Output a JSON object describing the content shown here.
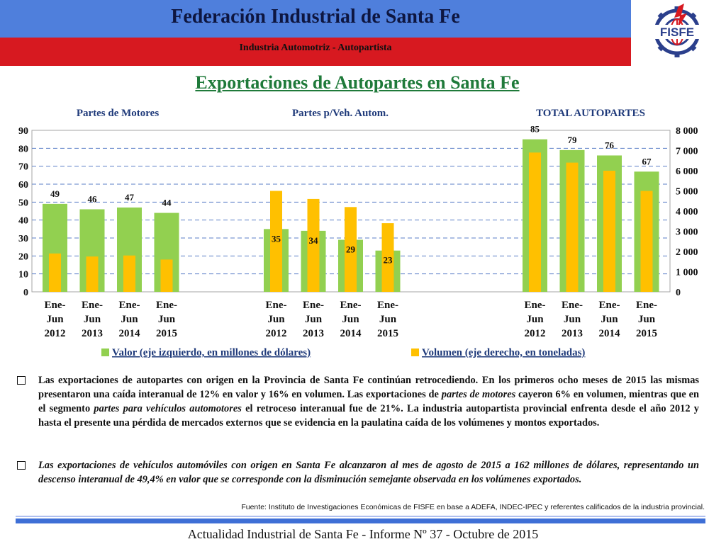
{
  "header": {
    "org_title": "Federación Industrial de Santa Fe",
    "subtitle": "Industria Automotriz - Autopartista",
    "logo_text": "FISFE"
  },
  "main_title": "Exportaciones de Autopartes en Santa Fe",
  "colors": {
    "valor": "#92d050",
    "volumen": "#ffc000",
    "title": "#1f7a3a",
    "header_blue": "#4f7fdc",
    "header_red": "#d71920"
  },
  "chart_data": {
    "type": "bar",
    "panels": [
      {
        "name": "Partes de Motores",
        "categories": [
          "Ene-Jun 2012",
          "Ene-Jun 2013",
          "Ene-Jun 2014",
          "Ene-Jun 2015"
        ],
        "valor": [
          49,
          46,
          47,
          44
        ],
        "volumen": [
          1900,
          1750,
          1800,
          1600
        ]
      },
      {
        "name": "Partes p/Veh. Autom.",
        "categories": [
          "Ene-Jun 2012",
          "Ene-Jun 2013",
          "Ene-Jun 2014",
          "Ene-Jun 2015"
        ],
        "valor": [
          35,
          34,
          29,
          23
        ],
        "volumen": [
          5000,
          4600,
          4200,
          3400
        ]
      },
      {
        "name": "TOTAL AUTOPARTES",
        "categories": [
          "Ene-Jun 2012",
          "Ene-Jun 2013",
          "Ene-Jun 2014",
          "Ene-Jun 2015"
        ],
        "valor": [
          85,
          79,
          76,
          67
        ],
        "volumen": [
          6900,
          6400,
          6000,
          5000
        ]
      }
    ],
    "ylim_left": [
      0,
      90
    ],
    "yticks_left": [
      "0",
      "10",
      "20",
      "30",
      "40",
      "50",
      "60",
      "70",
      "80",
      "90"
    ],
    "ylim_right": [
      0,
      8000
    ],
    "yticks_right": [
      "0",
      "1 000",
      "2 000",
      "3 000",
      "4 000",
      "5 000",
      "6 000",
      "7 000",
      "8 000"
    ],
    "legend": [
      "Valor (eje izquierdo, en millones de dólares)",
      "Volumen (eje derecho, en toneladas)"
    ],
    "legend_position": "bottom",
    "grid": true
  },
  "bullets": [
    {
      "parts": [
        {
          "text": "Las exportaciones de autopartes con origen en la Provincia de Santa Fe continúan retrocediendo. En los primeros ocho meses de 2015 las mismas presentaron una caída interanual de 12% en valor y 16% en volumen. Las exportaciones de "
        },
        {
          "text": "partes de motores",
          "italic": true
        },
        {
          "text": " cayeron 6% en volumen, mientras que en el segmento "
        },
        {
          "text": "partes para vehículos automotores",
          "italic": true
        },
        {
          "text": " el retroceso interanual fue de 21%. La industria autopartista provincial enfrenta desde el año 2012 y hasta el presente una pérdida de mercados externos que se evidencia en la paulatina caída de los volúmenes y montos exportados."
        }
      ]
    },
    {
      "parts": [
        {
          "text": "Las exportaciones de vehículos automóviles con origen en Santa Fe alcanzaron al mes de agosto de 2015 a 162 millones de dólares, representando un descenso interanual de 49,4% en valor que se corresponde con la disminución semejante observada en los volúmenes exportados."
        }
      ]
    }
  ],
  "source": "Fuente: Instituto de Investigaciones Económicas de FISFE en base a ADEFA, INDEC-IPEC y referentes calificados de la industria provincial.",
  "footer": "Actualidad Industrial de Santa Fe - Informe Nº 37 - Octubre de 2015"
}
